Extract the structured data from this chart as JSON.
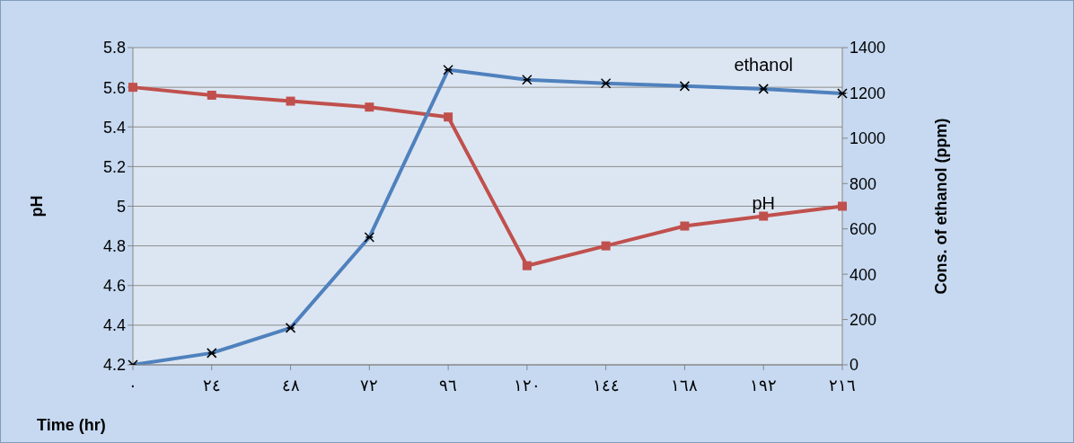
{
  "chart_data": {
    "type": "line",
    "xlabel": "Time (hr)",
    "ylabel": "pH",
    "y2label": "Cons. of ethanol (ppm)",
    "categories": [
      "٠",
      "٢٤",
      "٤٨",
      "٧٢",
      "٩٦",
      "١٢٠",
      "١٤٤",
      "١٦٨",
      "١٩٢",
      "٢١٦"
    ],
    "series": [
      {
        "name": "pH",
        "color": "#c0504d",
        "marker": "square",
        "values": [
          5.6,
          5.56,
          5.53,
          5.5,
          5.45,
          4.7,
          4.8,
          4.9,
          4.95,
          5.0
        ]
      },
      {
        "name": "ethanol",
        "color": "#4f81bd",
        "marker": "cross",
        "axis": "y2",
        "values": [
          0,
          52,
          163,
          563,
          1302,
          1258,
          1242,
          1230,
          1218,
          1198
        ]
      }
    ],
    "ylim": [
      4.2,
      5.8
    ],
    "yticks": [
      4.2,
      4.4,
      4.6,
      4.8,
      5,
      5.2,
      5.4,
      5.6,
      5.8
    ],
    "y2lim": [
      0,
      1400
    ],
    "y2ticks": [
      0,
      200,
      400,
      600,
      800,
      1000,
      1200,
      1400
    ],
    "grid": "y",
    "legend": false
  }
}
